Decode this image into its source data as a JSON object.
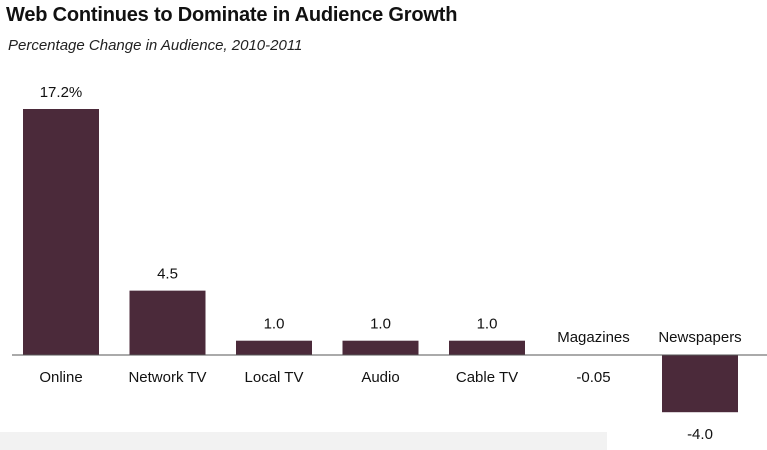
{
  "title": "Web Continues to Dominate in Audience Growth",
  "subtitle": "Percentage Change in Audience, 2010-2011",
  "colors": {
    "bar": "#4b2a3a",
    "axis": "#555555",
    "text": "#111111"
  },
  "chart_data": {
    "type": "bar",
    "title": "Web Continues to Dominate in Audience Growth",
    "subtitle": "Percentage Change in Audience, 2010-2011",
    "categories": [
      "Online",
      "Network TV",
      "Local TV",
      "Audio",
      "Cable TV",
      "Magazines",
      "Newspapers"
    ],
    "values": [
      17.2,
      4.5,
      1.0,
      1.0,
      1.0,
      -0.05,
      -4.0
    ],
    "value_labels": [
      "17.2%",
      "4.5",
      "1.0",
      "1.0",
      "1.0",
      "-0.05",
      "-4.0"
    ],
    "xlabel": "",
    "ylabel": "",
    "grid": false,
    "legend": "none"
  }
}
